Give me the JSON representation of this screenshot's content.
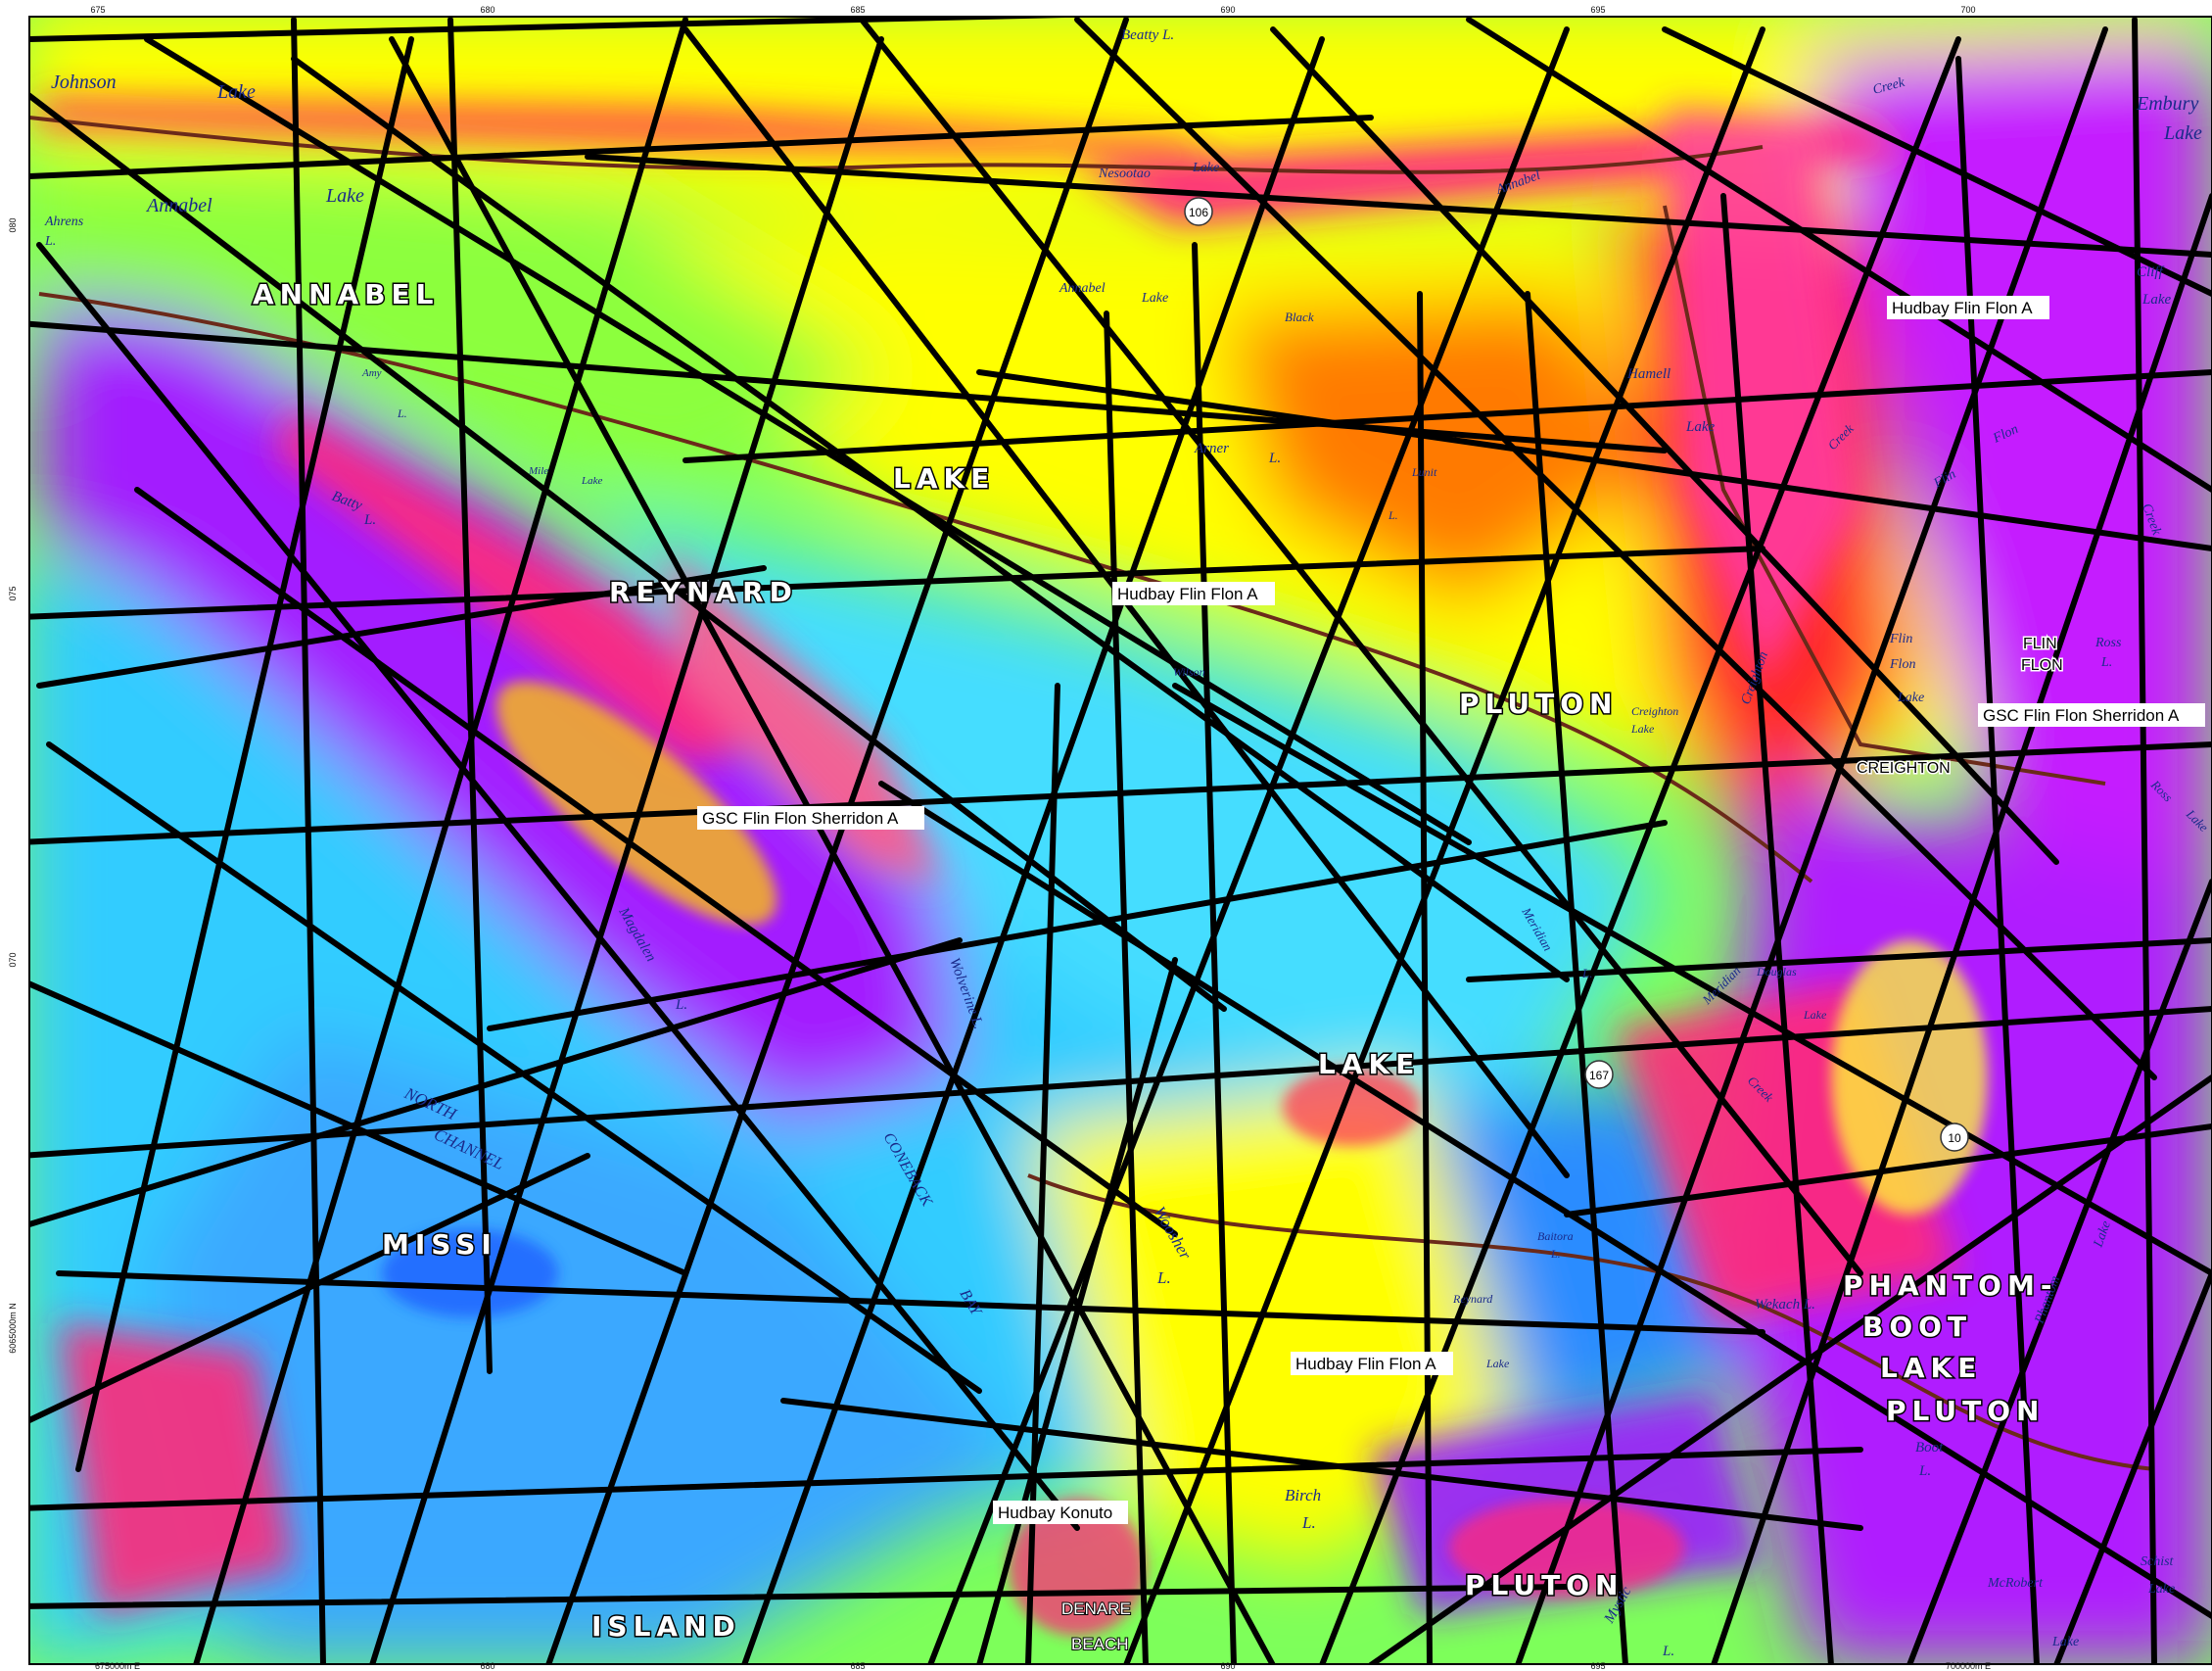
{
  "map": {
    "colors": {
      "frame": "#000000",
      "fault_line": "#000000",
      "road": "#6b2a1a",
      "lake_text": "#1a2a8a",
      "geology_text": "#ffffff",
      "magnetic_ramp": [
        "#1e5cff",
        "#33ccff",
        "#55ffee",
        "#7dff5a",
        "#ccff33",
        "#ffff00",
        "#ffb000",
        "#ff5a00",
        "#ff1a55",
        "#d0209a",
        "#9b1cff"
      ]
    },
    "grid_labels": {
      "top": [
        "675",
        "680",
        "685",
        "690",
        "695",
        "700"
      ],
      "left": [
        "080",
        "075",
        "070",
        "6065000m N"
      ],
      "bottom": [
        "675000m E",
        "680",
        "685",
        "690",
        "695",
        "700000m E"
      ]
    },
    "geology_labels": [
      "ANNABEL",
      "LAKE",
      "REYNARD",
      "PLUTON",
      "LAKE",
      "MISSI",
      "ISLAND",
      "PLUTON",
      "PHANTOM-",
      "BOOT",
      "LAKE",
      "PLUTON"
    ],
    "lake_labels": [
      "Johnson",
      "Lake",
      "Annabel",
      "Lake",
      "Ahrens",
      "L.",
      "Beatty L.",
      "Nesootao",
      "Lake",
      "Annabel",
      "Annabel",
      "Lake",
      "Black",
      "Hamell",
      "Lake",
      "Arner",
      "L.",
      "Lunit",
      "L.",
      "Batty",
      "L.",
      "Amy",
      "L.",
      "Mile",
      "Lake",
      "Wilson",
      "Creighton",
      "Lake",
      "Creighton",
      "Flin",
      "Flon",
      "Lake",
      "Ross",
      "L.",
      "Creek",
      "Cliff",
      "Lake",
      "Embury",
      "Lake",
      "Flin",
      "Flon",
      "Creek",
      "Magdalen",
      "L.",
      "Wolverine L.",
      "NORTH",
      "CHANNEL",
      "CONEBACK",
      "BAY",
      "Woosher",
      "L.",
      "Meridian",
      "L.",
      "Douglas",
      "Lake",
      "Meridian",
      "Creek",
      "Baitora",
      "L.",
      "Reynard",
      "Lake",
      "Wekach L.",
      "Phantom",
      "Lake",
      "Birch",
      "L.",
      "Mystic",
      "L.",
      "Boot",
      "L.",
      "McRobert",
      "Lake",
      "Schist",
      "Lake",
      "Ross",
      "Lake",
      "Creek"
    ],
    "places": [
      "FLIN",
      "FLON",
      "CREIGHTON",
      "DENARE",
      "BEACH"
    ],
    "highways": [
      "106",
      "167",
      "10"
    ],
    "survey_labels": [
      "Hudbay Flin Flon A",
      "Hudbay Flin Flon A",
      "GSC Flin Flon Sherridon A",
      "GSC Flin Flon Sherridon A",
      "Hudbay Flin Flon A",
      "Hudbay Konuto"
    ]
  }
}
